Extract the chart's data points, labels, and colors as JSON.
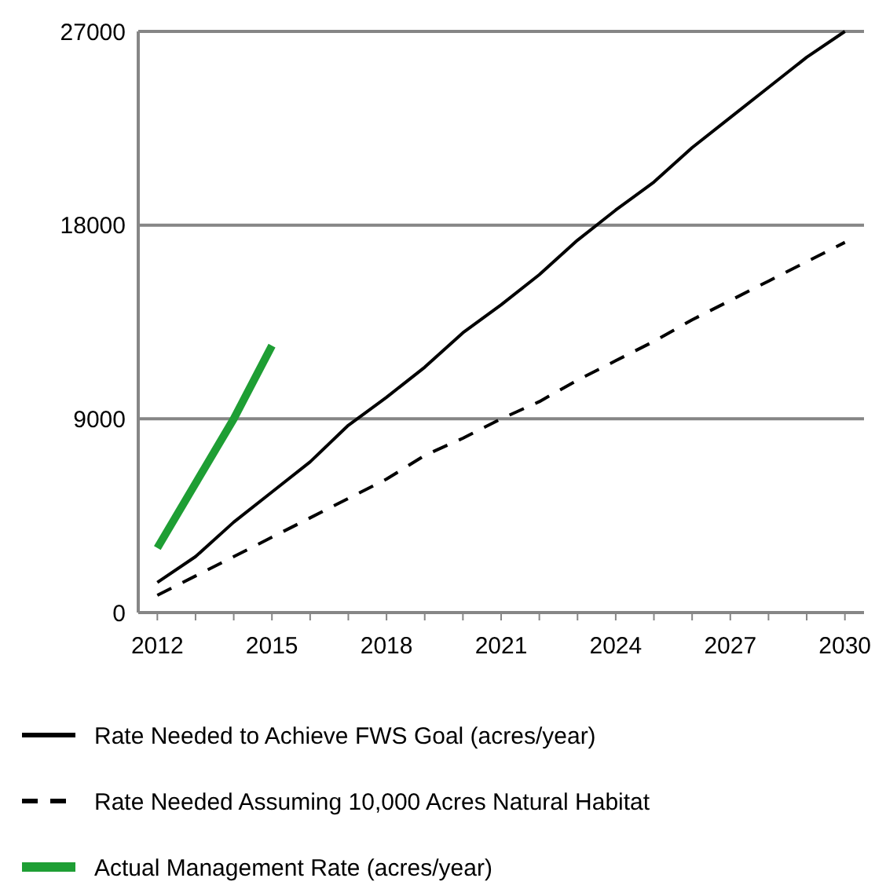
{
  "chart_data": {
    "type": "line",
    "categories": [
      "2012",
      null,
      null,
      "2015",
      null,
      null,
      "2018",
      null,
      null,
      "2021",
      null,
      null,
      "2024",
      null,
      null,
      "2027",
      null,
      null,
      "2030"
    ],
    "series": [
      {
        "name": "Rate Needed to Achieve FWS Goal (acres/year)",
        "color": "#000000",
        "line_style": "solid",
        "values": [
          1400,
          2600,
          4200,
          5600,
          7000,
          8700,
          10000,
          11400,
          13000,
          14300,
          15700,
          17300,
          18700,
          20000,
          21600,
          23000,
          24400,
          25800,
          27000
        ]
      },
      {
        "name": "Rate Needed Assuming 10,000 Acres Natural Habitat",
        "color": "#000000",
        "line_style": "dashed",
        "values": [
          800,
          1700,
          2600,
          3500,
          4400,
          5300,
          6200,
          7300,
          8100,
          9000,
          9800,
          10800,
          11700,
          12600,
          13600,
          14500,
          15400,
          16300,
          17200
        ]
      },
      {
        "name": "Actual Management Rate (acres/year)",
        "color": "#1e9e34",
        "line_style": "solid",
        "values": [
          3000,
          6000,
          9000,
          12400,
          null,
          null,
          null,
          null,
          null,
          null,
          null,
          null,
          null,
          null,
          null,
          null,
          null,
          null,
          null
        ]
      }
    ],
    "ylim": [
      0,
      27000
    ],
    "yticks": [
      0,
      9000,
      18000,
      27000
    ],
    "grid": "y",
    "legend": "bottom"
  }
}
